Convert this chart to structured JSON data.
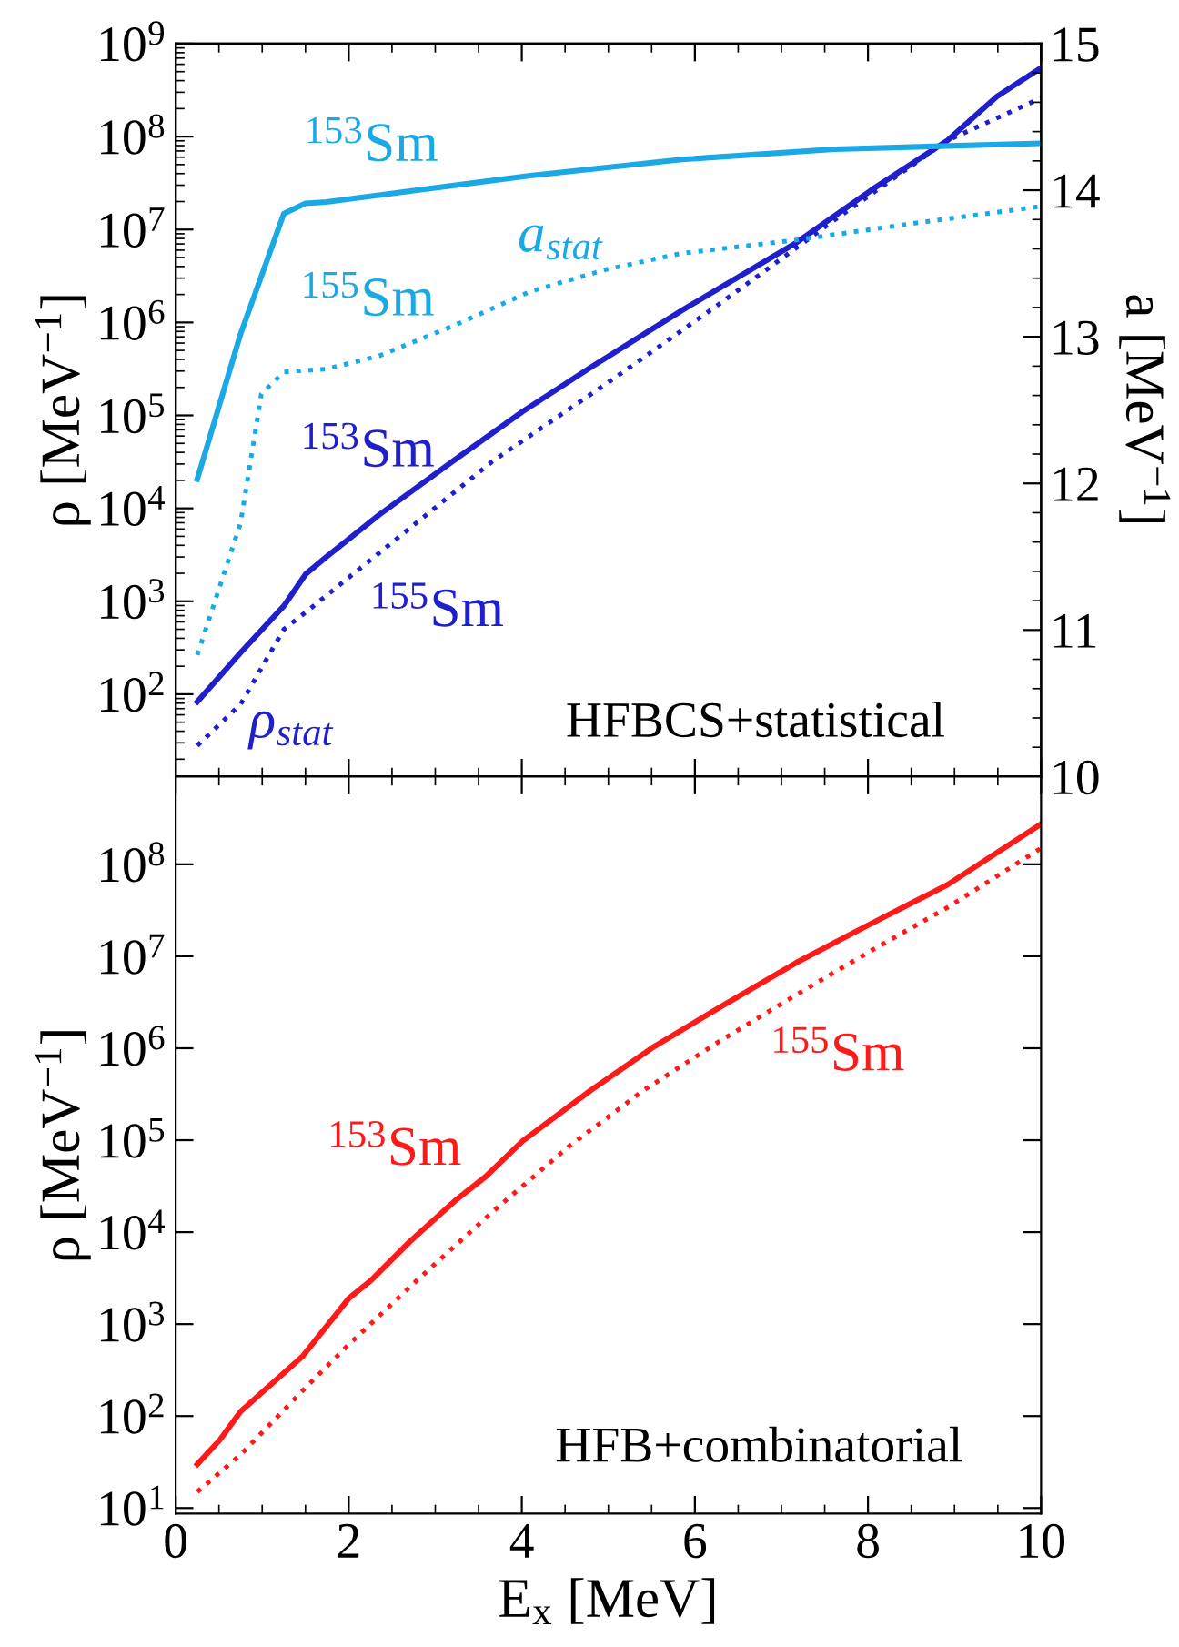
{
  "chart_data": [
    {
      "type": "line",
      "xlim": [
        0,
        10
      ],
      "xticks": [
        0,
        2,
        4,
        6,
        8,
        10
      ],
      "tick_labels": "y",
      "log": "y",
      "ylim": [
        13,
        1000000000
      ],
      "yticks": [
        {
          "value": 100,
          "label": "10$^{2}$"
        },
        {
          "value": 1000,
          "label": "10$^{3}$"
        },
        {
          "value": 10000,
          "label": "10$^{4}$"
        },
        {
          "value": 100000,
          "label": "10$^{5}$"
        },
        {
          "value": 1000000,
          "label": "10$^{6}$"
        },
        {
          "value": 10000000,
          "label": "10$^{7}$"
        },
        {
          "value": 100000000,
          "label": "10$^{8}$"
        },
        {
          "value": 1000000000,
          "label": "10$^{9}$"
        }
      ],
      "y2lim": [
        10,
        15
      ],
      "y2ticks": [
        10,
        11,
        12,
        13,
        14,
        15
      ],
      "ylabel": "ρ [MeV$^{−1}$]",
      "y2label": "a [MeV$^{−1}$]",
      "series": [
        {
          "name": "$^{153}$Sm",
          "color": "#1f1fcc",
          "line_style": "solid",
          "x": [
            0.25,
            0.75,
            1.25,
            1.5,
            1.74,
            2.35,
            3.31,
            4.01,
            4.8,
            5.85,
            7.17,
            8.05,
            8.92,
            9.49,
            10
          ],
          "values": [
            83,
            280,
            890,
            1950,
            3000,
            8500,
            38000,
            110000,
            330000,
            1350000,
            7200000,
            27000000,
            91000000,
            270000000,
            550000000
          ]
        },
        {
          "name": "$^{155}$Sm",
          "color": "#1f1fcc",
          "line_style": "dotted",
          "x": [
            0.25,
            0.75,
            1.25,
            1.47,
            2.35,
            3.66,
            4.98,
            6.29,
            7.61,
            8.92,
            10
          ],
          "values": [
            28,
            78,
            500,
            720,
            3300,
            32000,
            220000,
            1600000,
            12600000,
            91000000,
            260000000
          ]
        },
        {
          "name": "$^{153}$Sm",
          "color": "#1ba9e6",
          "line_style": "solid",
          "axis": "y2",
          "x": [
            0.25,
            0.75,
            1.25,
            1.5,
            1.74,
            2.79,
            4.1,
            5.85,
            7.61,
            10
          ],
          "values": [
            12.03,
            13.02,
            13.84,
            13.91,
            13.92,
            14.0,
            14.1,
            14.21,
            14.28,
            14.32
          ]
        },
        {
          "name": "$^{155}$Sm",
          "color": "#1ba9e6",
          "line_style": "dotted",
          "axis": "y2",
          "x": [
            0.25,
            0.75,
            0.99,
            1.25,
            1.74,
            2.35,
            3.23,
            4.1,
            4.98,
            5.85,
            7.17,
            8.48,
            10
          ],
          "values": [
            10.83,
            11.73,
            12.61,
            12.76,
            12.78,
            12.87,
            13.08,
            13.31,
            13.46,
            13.57,
            13.66,
            13.77,
            13.89
          ]
        }
      ],
      "annotations": [
        "a$_{stat}$",
        "ρ$_{stat}$",
        "HFBCS+statistical"
      ]
    },
    {
      "type": "line",
      "xlim": [
        0,
        10
      ],
      "xticks": [
        0,
        2,
        4,
        6,
        8,
        10
      ],
      "log": "y",
      "xlabel": "E$_{x}$ [MeV]",
      "ylim": [
        8.7,
        900000000
      ],
      "yticks": [
        {
          "value": 10,
          "label": "10$^{1}$"
        },
        {
          "value": 100,
          "label": "10$^{2}$"
        },
        {
          "value": 1000,
          "label": "10$^{3}$"
        },
        {
          "value": 10000,
          "label": "10$^{4}$"
        },
        {
          "value": 100000,
          "label": "10$^{5}$"
        },
        {
          "value": 1000000,
          "label": "10$^{6}$"
        },
        {
          "value": 10000000,
          "label": "10$^{7}$"
        },
        {
          "value": 100000000,
          "label": "10$^{8}$"
        }
      ],
      "ylabel": "ρ [MeV$^{−1}$]",
      "series": [
        {
          "name": "$^{153}$Sm",
          "color": "#ff1a1a",
          "line_style": "solid",
          "x": [
            0.25,
            0.51,
            0.75,
            1.47,
            2.0,
            2.26,
            2.7,
            3.23,
            3.58,
            4.01,
            4.8,
            5.5,
            6.29,
            7.17,
            8.05,
            8.92,
            10
          ],
          "values": [
            30,
            55,
            112,
            450,
            1900,
            3000,
            7800,
            22000,
            40000,
            98000,
            350000,
            1000000,
            2800000,
            8500000,
            23000000,
            60000000,
            275000000
          ]
        },
        {
          "name": "$^{155}$Sm",
          "color": "#ff1a1a",
          "line_style": "dotted",
          "x": [
            0.25,
            0.75,
            1.47,
            2.0,
            2.79,
            3.66,
            4.54,
            5.41,
            6.29,
            7.17,
            8.05,
            8.92,
            10
          ],
          "values": [
            15,
            38,
            190,
            600,
            3000,
            16600,
            85000,
            350000,
            1200000,
            3800000,
            11700000,
            34000000,
            150000000
          ]
        }
      ],
      "annotations": [
        "HFB+combinatorial"
      ]
    }
  ]
}
